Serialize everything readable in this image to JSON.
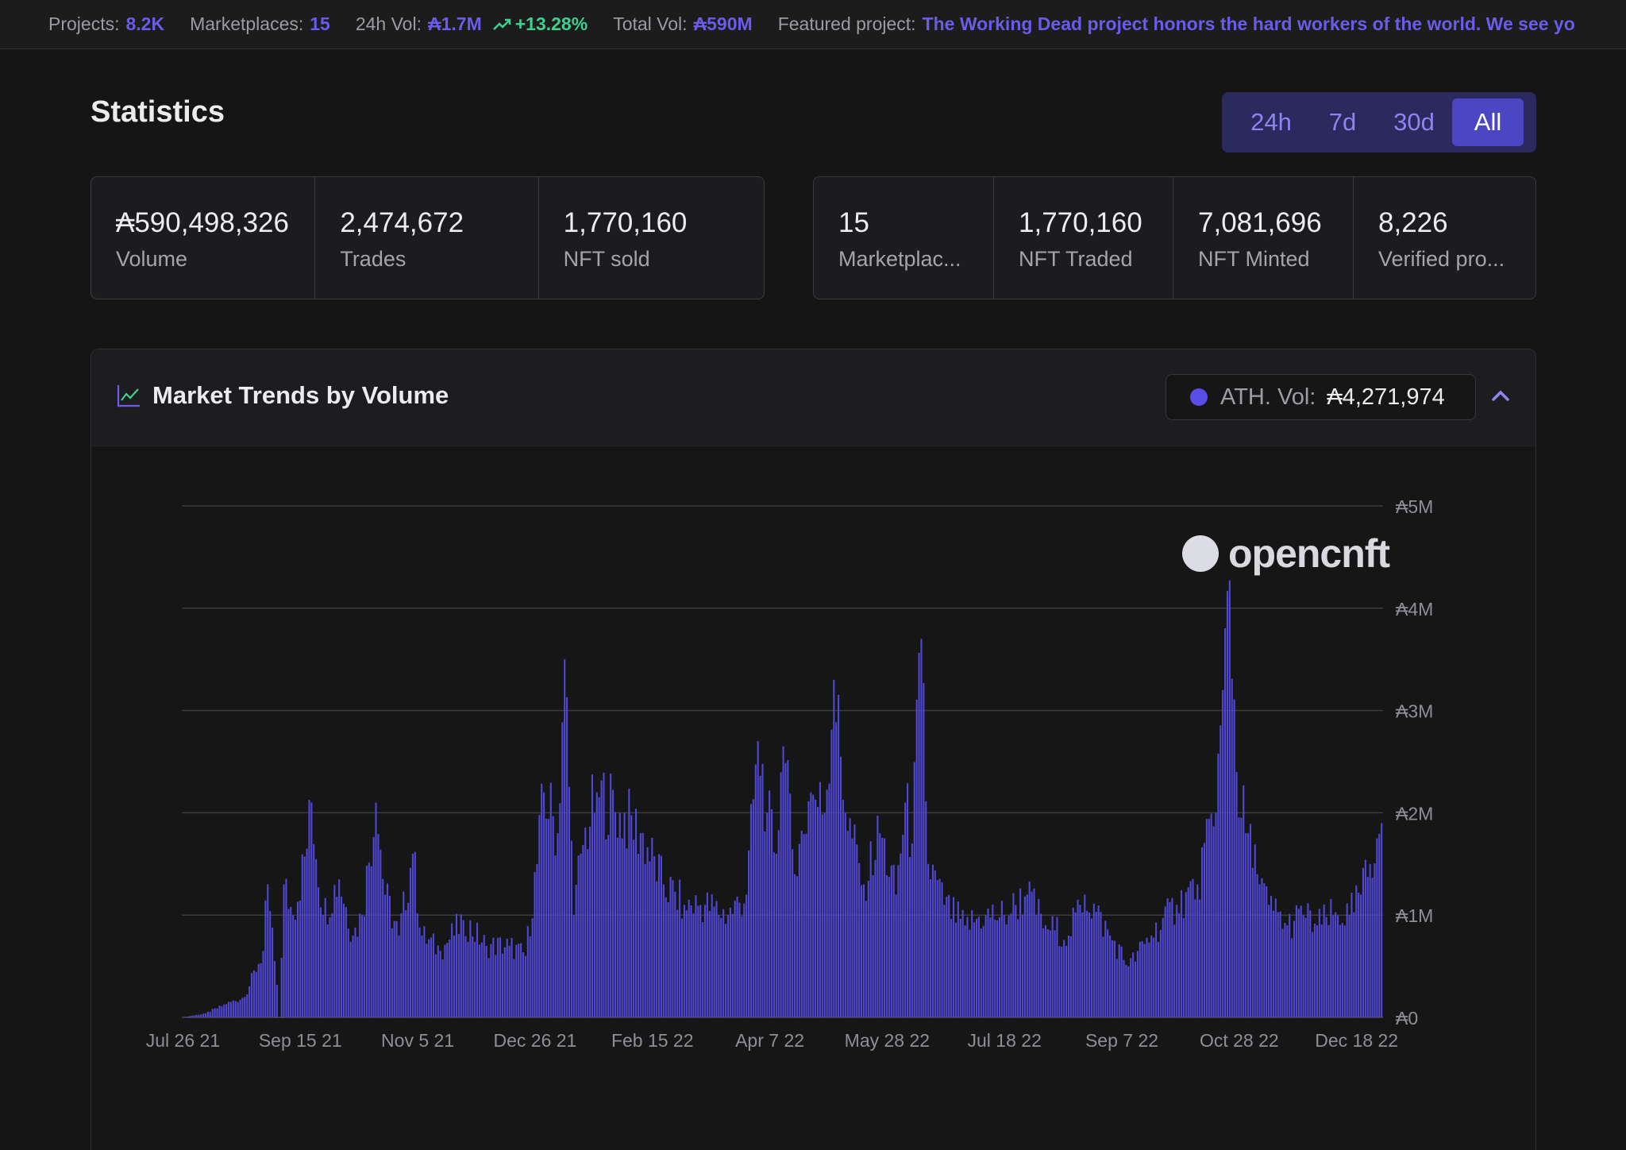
{
  "ticker": {
    "projects_label": "Projects:",
    "projects_value": "8.2K",
    "marketplaces_label": "Marketplaces:",
    "marketplaces_value": "15",
    "vol24h_label": "24h Vol:",
    "vol24h_value": "₳1.7M",
    "vol24h_change": "+13.28%",
    "total_label": "Total Vol:",
    "total_value": "₳590M",
    "featured_label": "Featured project:",
    "featured_text": "The Working Dead project honors the hard workers of the world. We see yo"
  },
  "page_title": "Statistics",
  "periods": [
    {
      "label": "24h",
      "active": false
    },
    {
      "label": "7d",
      "active": false
    },
    {
      "label": "30d",
      "active": false
    },
    {
      "label": "All",
      "active": true
    }
  ],
  "stats_left": [
    {
      "value": "₳590,498,326",
      "label": "Volume"
    },
    {
      "value": "2,474,672",
      "label": "Trades"
    },
    {
      "value": "1,770,160",
      "label": "NFT sold"
    }
  ],
  "stats_right": [
    {
      "value": "15",
      "label": "Marketplac..."
    },
    {
      "value": "1,770,160",
      "label": "NFT Traded"
    },
    {
      "value": "7,081,696",
      "label": "NFT Minted"
    },
    {
      "value": "8,226",
      "label": "Verified pro..."
    }
  ],
  "chart_panel": {
    "title": "Market Trends by Volume",
    "ath_label": "ATH. Vol:",
    "ath_value": "₳4,271,974",
    "watermark": "opencnft"
  },
  "colors": {
    "accent": "#5a4ee8",
    "bar": "#5147d6",
    "positive": "#3fcf8e"
  },
  "icons": [
    "trend-up-icon",
    "line-chart-icon",
    "chevron-up-icon"
  ],
  "chart_data": {
    "type": "bar",
    "title": "Market Trends by Volume",
    "xlabel": "",
    "ylabel": "",
    "x_tick_labels": [
      "Jul 26 21",
      "Sep 15 21",
      "Nov 5 21",
      "Dec 26 21",
      "Feb 15 22",
      "Apr 7 22",
      "May 28 22",
      "Jul 18 22",
      "Sep 7 22",
      "Oct 28 22",
      "Dec 18 22"
    ],
    "y_tick_labels": [
      "₳0",
      "₳1M",
      "₳2M",
      "₳3M",
      "₳4M",
      "₳5M"
    ],
    "ylim": [
      0,
      5000000
    ],
    "grid": true,
    "start_date": "2021-07-26",
    "end_date": "2022-12-29",
    "series": [
      {
        "name": "Volume",
        "anchors": [
          [
            "2021-07-26",
            0
          ],
          [
            "2021-08-05",
            40000
          ],
          [
            "2021-08-14",
            130000
          ],
          [
            "2021-08-22",
            200000
          ],
          [
            "2021-08-30",
            650000
          ],
          [
            "2021-09-01",
            1300000
          ],
          [
            "2021-09-04",
            550000
          ],
          [
            "2021-09-06",
            0
          ],
          [
            "2021-09-08",
            1300000
          ],
          [
            "2021-09-12",
            1000000
          ],
          [
            "2021-09-18",
            1650000
          ],
          [
            "2021-09-20",
            2100000
          ],
          [
            "2021-09-25",
            1000000
          ],
          [
            "2021-10-02",
            1350000
          ],
          [
            "2021-10-08",
            800000
          ],
          [
            "2021-10-12",
            1000000
          ],
          [
            "2021-10-18",
            2100000
          ],
          [
            "2021-10-22",
            1200000
          ],
          [
            "2021-10-28",
            800000
          ],
          [
            "2021-11-03",
            1600000
          ],
          [
            "2021-11-07",
            800000
          ],
          [
            "2021-11-15",
            650000
          ],
          [
            "2021-11-25",
            950000
          ],
          [
            "2021-12-05",
            700000
          ],
          [
            "2021-12-15",
            700000
          ],
          [
            "2021-12-22",
            600000
          ],
          [
            "2021-12-27",
            1500000
          ],
          [
            "2021-12-30",
            2200000
          ],
          [
            "2022-01-05",
            1800000
          ],
          [
            "2022-01-08",
            3500000
          ],
          [
            "2022-01-12",
            1000000
          ],
          [
            "2022-01-15",
            1600000
          ],
          [
            "2022-01-22",
            2200000
          ],
          [
            "2022-02-01",
            2000000
          ],
          [
            "2022-02-10",
            1800000
          ],
          [
            "2022-02-20",
            1300000
          ],
          [
            "2022-03-01",
            1100000
          ],
          [
            "2022-03-10",
            1100000
          ],
          [
            "2022-03-20",
            1000000
          ],
          [
            "2022-03-28",
            1200000
          ],
          [
            "2022-04-02",
            2700000
          ],
          [
            "2022-04-06",
            2000000
          ],
          [
            "2022-04-10",
            1600000
          ],
          [
            "2022-04-13",
            2650000
          ],
          [
            "2022-04-18",
            1400000
          ],
          [
            "2022-04-25",
            2200000
          ],
          [
            "2022-05-01",
            2000000
          ],
          [
            "2022-05-05",
            3300000
          ],
          [
            "2022-05-10",
            2000000
          ],
          [
            "2022-05-18",
            1300000
          ],
          [
            "2022-05-25",
            1800000
          ],
          [
            "2022-06-01",
            1200000
          ],
          [
            "2022-06-05",
            2100000
          ],
          [
            "2022-06-08",
            1700000
          ],
          [
            "2022-06-12",
            3700000
          ],
          [
            "2022-06-15",
            1500000
          ],
          [
            "2022-06-22",
            1100000
          ],
          [
            "2022-07-01",
            900000
          ],
          [
            "2022-07-10",
            1000000
          ],
          [
            "2022-07-18",
            1000000
          ],
          [
            "2022-07-28",
            1200000
          ],
          [
            "2022-08-05",
            900000
          ],
          [
            "2022-08-15",
            800000
          ],
          [
            "2022-08-22",
            1200000
          ],
          [
            "2022-09-02",
            800000
          ],
          [
            "2022-09-10",
            500000
          ],
          [
            "2022-09-20",
            800000
          ],
          [
            "2022-10-01",
            1100000
          ],
          [
            "2022-10-10",
            1300000
          ],
          [
            "2022-10-18",
            2000000
          ],
          [
            "2022-10-21",
            3200000
          ],
          [
            "2022-10-24",
            4271974
          ],
          [
            "2022-10-27",
            2400000
          ],
          [
            "2022-10-31",
            1800000
          ],
          [
            "2022-11-05",
            1400000
          ],
          [
            "2022-11-10",
            1100000
          ],
          [
            "2022-11-18",
            900000
          ],
          [
            "2022-11-25",
            1000000
          ],
          [
            "2022-12-01",
            900000
          ],
          [
            "2022-12-08",
            1000000
          ],
          [
            "2022-12-15",
            1000000
          ],
          [
            "2022-12-20",
            1200000
          ],
          [
            "2022-12-24",
            1500000
          ],
          [
            "2022-12-27",
            1750000
          ],
          [
            "2022-12-29",
            1900000
          ]
        ]
      }
    ]
  }
}
